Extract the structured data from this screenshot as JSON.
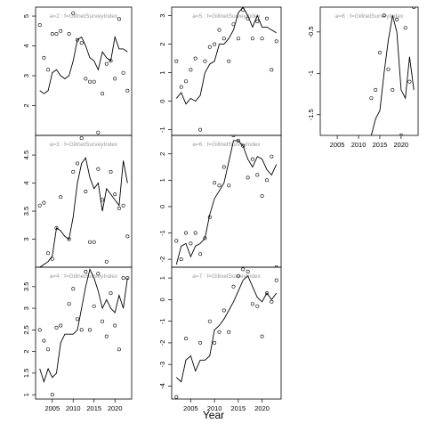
{
  "xlabel": "Year",
  "chart_data": [
    {
      "type": "scatter",
      "title": "a=2 : f=GillnetSurveyIndex",
      "xlim": [
        2001,
        2024
      ],
      "ylim": [
        1.0,
        5.3
      ],
      "yticks": [
        2,
        3,
        4,
        5
      ],
      "xticks": [
        2005,
        2010,
        2015,
        2020
      ],
      "show_xticks": false,
      "series": [
        {
          "kind": "points",
          "x": [
            2002,
            2003,
            2004,
            2005,
            2006,
            2007,
            2009,
            2010,
            2011,
            2012,
            2013,
            2014,
            2015,
            2016,
            2017,
            2018,
            2019,
            2020,
            2021,
            2022,
            2023
          ],
          "y": [
            4.7,
            3.6,
            3.2,
            4.4,
            4.4,
            4.5,
            4.4,
            5.1,
            4.2,
            4.1,
            2.9,
            2.8,
            2.8,
            1.1,
            2.4,
            3.4,
            3.5,
            2.9,
            4.9,
            3.1,
            2.5
          ]
        },
        {
          "kind": "line",
          "x": [
            2002,
            2003,
            2004,
            2005,
            2006,
            2007,
            2008,
            2009,
            2010,
            2011,
            2012,
            2013,
            2014,
            2015,
            2016,
            2017,
            2018,
            2019,
            2020,
            2021,
            2022,
            2023
          ],
          "y": [
            2.5,
            2.4,
            2.5,
            3.1,
            3.2,
            3.0,
            2.9,
            3.0,
            3.5,
            4.2,
            4.3,
            4.0,
            3.6,
            3.5,
            3.2,
            3.8,
            3.6,
            3.5,
            4.3,
            3.9,
            3.9,
            3.8
          ]
        }
      ]
    },
    {
      "type": "scatter",
      "title": "a=5 : f=GillnetSurveyIndex",
      "xlim": [
        2001,
        2024
      ],
      "ylim": [
        -1.2,
        3.3
      ],
      "yticks": [
        -1,
        0,
        1,
        2,
        3
      ],
      "xticks": [
        2005,
        2010,
        2015,
        2020
      ],
      "show_xticks": false,
      "series": [
        {
          "kind": "points",
          "x": [
            2002,
            2003,
            2004,
            2005,
            2006,
            2007,
            2008,
            2009,
            2010,
            2011,
            2012,
            2013,
            2014,
            2015,
            2016,
            2017,
            2018,
            2019,
            2020,
            2021,
            2022,
            2023
          ],
          "y": [
            1.4,
            0.5,
            0.7,
            1.1,
            1.5,
            -1.0,
            1.4,
            1.9,
            2.0,
            2.5,
            2.2,
            1.4,
            2.7,
            2.2,
            3.2,
            2.9,
            2.2,
            2.8,
            2.2,
            2.9,
            1.1,
            2.1
          ]
        },
        {
          "kind": "line",
          "x": [
            2002,
            2003,
            2004,
            2005,
            2006,
            2007,
            2008,
            2009,
            2010,
            2011,
            2012,
            2013,
            2014,
            2015,
            2016,
            2017,
            2018,
            2019,
            2020,
            2021,
            2022,
            2023
          ],
          "y": [
            0.1,
            0.3,
            -0.1,
            0.1,
            0.0,
            0.2,
            1.0,
            1.3,
            1.4,
            2.0,
            2.0,
            2.2,
            2.5,
            3.1,
            3.3,
            3.0,
            2.6,
            3.0,
            2.6,
            2.6,
            2.5,
            2.4
          ]
        }
      ]
    },
    {
      "type": "scatter",
      "title": "a=8 : f=GillnetSurveyIndex",
      "xlim": [
        2001,
        2024
      ],
      "ylim": [
        -1.75,
        -0.2
      ],
      "yticks": [
        -1.5,
        -1.0,
        -0.5
      ],
      "xticks": [
        2005,
        2010,
        2015,
        2020
      ],
      "show_xticks": true,
      "series": [
        {
          "kind": "points",
          "x": [
            2013,
            2014,
            2015,
            2016,
            2017,
            2018,
            2019,
            2020,
            2021,
            2022,
            2023
          ],
          "y": [
            -1.3,
            -1.2,
            -0.75,
            -0.3,
            -0.95,
            -1.2,
            -0.35,
            -1.75,
            -0.45,
            -1.1,
            -0.2
          ]
        },
        {
          "kind": "line",
          "x": [
            2013,
            2014,
            2015,
            2016,
            2017,
            2018,
            2019,
            2020,
            2021,
            2022,
            2023
          ],
          "y": [
            -1.75,
            -1.55,
            -1.45,
            -1.0,
            -0.6,
            -0.3,
            -0.5,
            -1.2,
            -1.3,
            -0.8,
            -1.2
          ]
        }
      ]
    },
    {
      "type": "scatter",
      "title": "a=3 : f=GillnetSurveyIndex",
      "xlim": [
        2001,
        2024
      ],
      "ylim": [
        2.5,
        4.85
      ],
      "yticks": [
        3.0,
        3.5,
        4.0,
        4.5
      ],
      "xticks": [
        2005,
        2010,
        2015,
        2020
      ],
      "show_xticks": false,
      "series": [
        {
          "kind": "points",
          "x": [
            2002,
            2003,
            2004,
            2005,
            2006,
            2007,
            2009,
            2010,
            2011,
            2012,
            2013,
            2014,
            2015,
            2016,
            2017,
            2018,
            2019,
            2020,
            2021,
            2022,
            2023
          ],
          "y": [
            3.6,
            3.65,
            2.75,
            2.65,
            3.2,
            3.75,
            3.0,
            4.2,
            4.35,
            4.8,
            3.85,
            2.95,
            2.95,
            4.25,
            3.7,
            2.6,
            4.2,
            3.8,
            3.55,
            3.6,
            3.05
          ]
        },
        {
          "kind": "line",
          "x": [
            2002,
            2003,
            2004,
            2005,
            2006,
            2007,
            2008,
            2009,
            2010,
            2011,
            2012,
            2013,
            2014,
            2015,
            2016,
            2017,
            2018,
            2019,
            2020,
            2021,
            2022,
            2023
          ],
          "y": [
            2.5,
            2.55,
            2.6,
            2.7,
            3.2,
            3.15,
            3.05,
            3.0,
            3.4,
            4.0,
            4.35,
            4.45,
            4.1,
            3.9,
            4.0,
            3.5,
            3.9,
            3.8,
            3.7,
            3.6,
            4.4,
            4.0
          ]
        }
      ]
    },
    {
      "type": "scatter",
      "title": "a=6 : f=GillnetSurveyIndex",
      "xlim": [
        2001,
        2024
      ],
      "ylim": [
        -2.3,
        2.7
      ],
      "yticks": [
        -2,
        -1,
        0,
        1,
        2
      ],
      "xticks": [
        2005,
        2010,
        2015,
        2020
      ],
      "show_xticks": false,
      "series": [
        {
          "kind": "points",
          "x": [
            2002,
            2003,
            2004,
            2005,
            2006,
            2007,
            2008,
            2009,
            2010,
            2011,
            2012,
            2013,
            2014,
            2015,
            2016,
            2017,
            2018,
            2019,
            2020,
            2021,
            2022,
            2023
          ],
          "y": [
            -1.3,
            -2.0,
            -1.0,
            -1.4,
            -1.0,
            -1.8,
            -1.2,
            -0.4,
            0.9,
            0.8,
            1.5,
            0.8,
            2.7,
            2.5,
            2.3,
            1.1,
            1.8,
            1.2,
            0.4,
            1.0,
            1.9,
            -2.3
          ]
        },
        {
          "kind": "line",
          "x": [
            2002,
            2003,
            2004,
            2005,
            2006,
            2007,
            2008,
            2009,
            2010,
            2011,
            2012,
            2013,
            2014,
            2015,
            2016,
            2017,
            2018,
            2019,
            2020,
            2021,
            2022,
            2023
          ],
          "y": [
            -2.2,
            -1.5,
            -1.4,
            -1.9,
            -1.5,
            -1.4,
            -1.2,
            -0.3,
            0.3,
            0.6,
            0.9,
            1.7,
            2.5,
            2.5,
            2.3,
            1.8,
            1.5,
            1.9,
            1.8,
            1.4,
            1.2,
            1.6
          ]
        }
      ]
    },
    {
      "type": "scatter",
      "title": "a=4 : f=GillnetSurveyIndex",
      "xlim": [
        2001,
        2024
      ],
      "ylim": [
        0.9,
        3.95
      ],
      "yticks": [
        1.0,
        1.5,
        2.0,
        2.5,
        3.0,
        3.5
      ],
      "xticks": [
        2005,
        2010,
        2015,
        2020
      ],
      "show_xticks": true,
      "series": [
        {
          "kind": "points",
          "x": [
            2002,
            2003,
            2004,
            2005,
            2006,
            2007,
            2009,
            2010,
            2011,
            2012,
            2013,
            2014,
            2015,
            2016,
            2017,
            2018,
            2019,
            2020,
            2021,
            2022,
            2023
          ],
          "y": [
            2.5,
            2.25,
            2.05,
            1.0,
            2.55,
            2.6,
            3.1,
            3.45,
            2.75,
            2.5,
            3.85,
            2.5,
            3.05,
            3.8,
            2.7,
            2.35,
            3.35,
            2.6,
            2.05,
            3.7,
            3.7
          ]
        },
        {
          "kind": "line",
          "x": [
            2002,
            2003,
            2004,
            2005,
            2006,
            2007,
            2008,
            2009,
            2010,
            2011,
            2012,
            2013,
            2014,
            2015,
            2016,
            2017,
            2018,
            2019,
            2020,
            2021,
            2022,
            2023
          ],
          "y": [
            1.6,
            1.3,
            1.6,
            1.4,
            1.5,
            2.2,
            2.4,
            2.4,
            2.4,
            2.5,
            3.0,
            3.5,
            3.9,
            3.7,
            3.4,
            3.0,
            3.2,
            3.0,
            2.9,
            3.3,
            3.0,
            3.7
          ]
        }
      ]
    },
    {
      "type": "scatter",
      "title": "a=7 : f=GillnetSurveyIndex",
      "xlim": [
        2001,
        2024
      ],
      "ylim": [
        -4.6,
        1.5
      ],
      "yticks": [
        -4,
        -3,
        -2,
        -1,
        0,
        1
      ],
      "xticks": [
        2005,
        2010,
        2015,
        2020
      ],
      "show_xticks": true,
      "series": [
        {
          "kind": "points",
          "x": [
            2002,
            2004,
            2007,
            2009,
            2010,
            2011,
            2012,
            2013,
            2014,
            2015,
            2016,
            2017,
            2018,
            2019,
            2020,
            2021,
            2022,
            2023
          ],
          "y": [
            -4.5,
            -1.8,
            -2.0,
            -1.0,
            -2.0,
            -1.5,
            -0.5,
            -1.5,
            0.6,
            1.1,
            1.4,
            1.3,
            -0.2,
            -0.3,
            -1.7,
            0.3,
            -0.1,
            0.9
          ]
        },
        {
          "kind": "line",
          "x": [
            2002,
            2003,
            2004,
            2005,
            2006,
            2007,
            2008,
            2009,
            2010,
            2011,
            2012,
            2013,
            2014,
            2015,
            2016,
            2017,
            2018,
            2019,
            2020,
            2021,
            2022,
            2023
          ],
          "y": [
            -3.6,
            -3.8,
            -2.8,
            -2.6,
            -3.3,
            -2.8,
            -2.8,
            -2.6,
            -1.4,
            -1.2,
            -0.9,
            -0.5,
            -0.1,
            0.4,
            0.9,
            1.1,
            0.6,
            0.1,
            -0.1,
            0.3,
            0.0,
            0.3
          ]
        }
      ]
    }
  ]
}
